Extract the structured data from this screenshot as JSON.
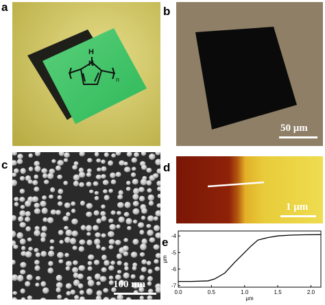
{
  "panels": {
    "a": {
      "letter": "a",
      "formula": {
        "atom_h": "H",
        "atom_n": "N",
        "subscript": "n"
      }
    },
    "b": {
      "letter": "b",
      "scalebar": "50 μm"
    },
    "c": {
      "letter": "c",
      "scalebar": "100 nm"
    },
    "d": {
      "letter": "d",
      "scalebar": "1 μm"
    },
    "e": {
      "letter": "e"
    }
  },
  "colors": {
    "panel_a_background": "#c9c05a",
    "panel_a_square_dark": "#1f1f1a",
    "panel_a_square_green": "#3fd06a",
    "panel_b_background": "#8e7f66",
    "panel_b_square": "#0a0a0a",
    "panel_c_background": "#2a2a2a",
    "panel_d_red": "#8a1d08",
    "panel_d_yellow": "#e8d240"
  },
  "chart_data": {
    "type": "line",
    "xlabel": "μm",
    "ylabel": "μm",
    "xlim": [
      0.0,
      2.15
    ],
    "ylim": [
      -7.1,
      -3.7
    ],
    "x_ticks": [
      "0.0",
      "0.5",
      "1.0",
      "1.5",
      "2.0"
    ],
    "x_tick_values": [
      0.0,
      0.5,
      1.0,
      1.5,
      2.0
    ],
    "y_ticks": [
      "-7",
      "-6",
      "-5",
      "-4"
    ],
    "y_tick_values": [
      -7,
      -6,
      -5,
      -4
    ],
    "series": [
      {
        "x": [
          0.0,
          0.2,
          0.45,
          0.55,
          0.7,
          0.85,
          1.0,
          1.1,
          1.2,
          1.35,
          1.5,
          1.7,
          1.9,
          2.15
        ],
        "y": [
          -6.75,
          -6.75,
          -6.72,
          -6.6,
          -6.25,
          -5.6,
          -5.0,
          -4.6,
          -4.25,
          -4.1,
          -4.0,
          -3.95,
          -3.93,
          -3.92
        ]
      }
    ]
  }
}
